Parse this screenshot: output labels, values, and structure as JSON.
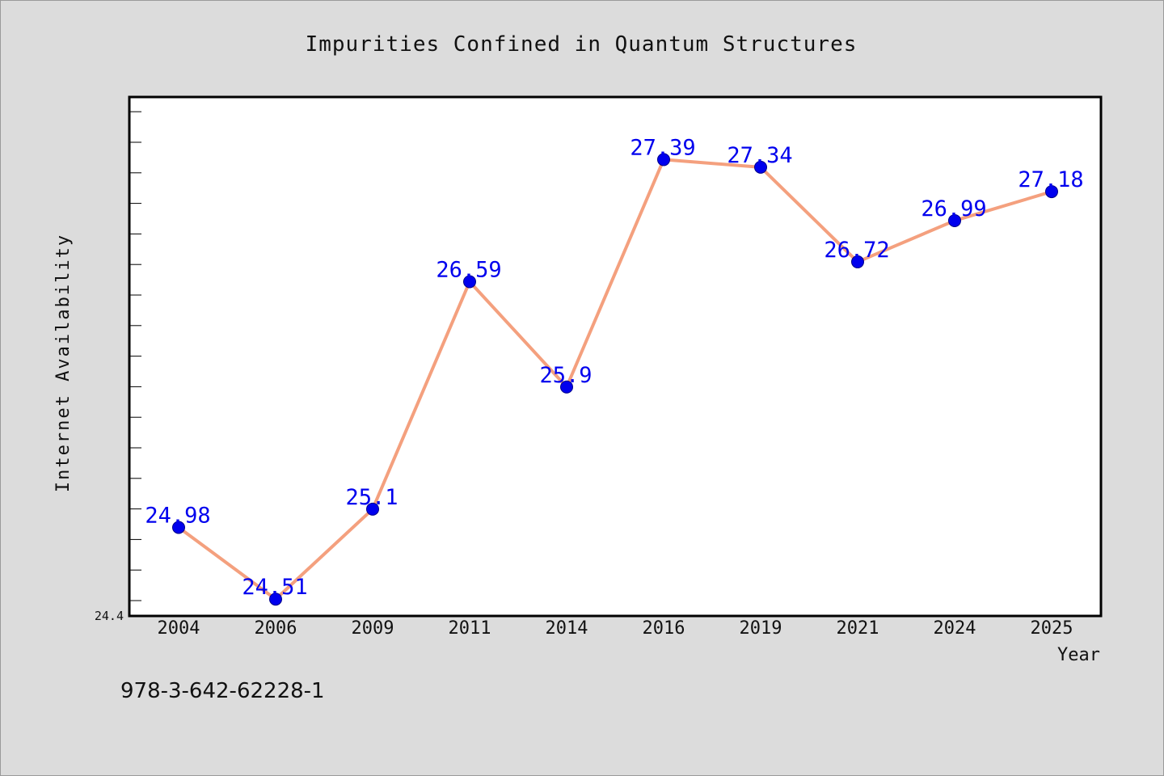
{
  "chart_data": {
    "type": "line",
    "title": "Impurities Confined in Quantum Structures",
    "xlabel": "Year",
    "ylabel": "Internet Availability",
    "categories": [
      "2004",
      "2006",
      "2009",
      "2011",
      "2014",
      "2016",
      "2019",
      "2021",
      "2024",
      "2025"
    ],
    "series": [
      {
        "values": [
          24.98,
          24.51,
          25.1,
          26.59,
          25.9,
          27.39,
          27.34,
          26.72,
          26.99,
          27.18
        ],
        "labels": [
          "24.98",
          "24.51",
          "25.1",
          "26.59",
          "25.9",
          "27.39",
          "27.34",
          "26.72",
          "26.99",
          "27.18"
        ]
      }
    ],
    "ylim": [
      24.4,
      27.8
    ],
    "y_tick_label": "24.4",
    "grid": false,
    "line_color": "#f4a07e",
    "marker_color": "#0000ee",
    "label_color": "#0000ee"
  },
  "footer_code": "978-3-642-62228-1"
}
